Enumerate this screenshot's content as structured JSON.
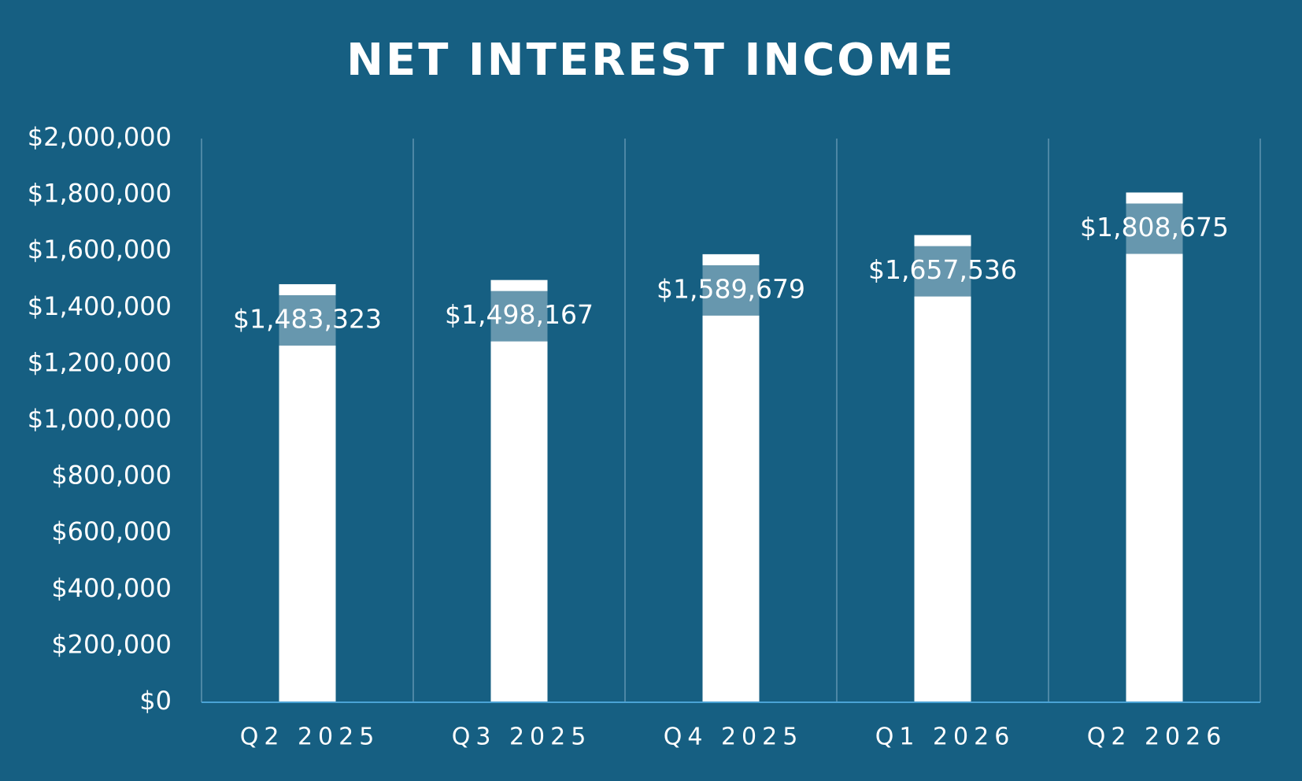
{
  "chart_data": {
    "type": "bar",
    "title": "NET INTEREST INCOME",
    "categories": [
      "Q2 2025",
      "Q3 2025",
      "Q4 2025",
      "Q1 2026",
      "Q2 2026"
    ],
    "values": [
      1483323,
      1498167,
      1589679,
      1657536,
      1808675
    ],
    "value_labels": [
      "$1,483,323",
      "$1,498,167",
      "$1,589,679",
      "$1,657,536",
      "$1,808,675"
    ],
    "color": "#ffffff",
    "ylim": [
      0,
      2000000
    ],
    "yticks": [
      {
        "value": 0,
        "label": "$0"
      },
      {
        "value": 200000,
        "label": "$200,000"
      },
      {
        "value": 400000,
        "label": "$400,000"
      },
      {
        "value": 600000,
        "label": "$600,000"
      },
      {
        "value": 800000,
        "label": "$800,000"
      },
      {
        "value": 1000000,
        "label": "$1,000,000"
      },
      {
        "value": 1200000,
        "label": "$1,200,000"
      },
      {
        "value": 1400000,
        "label": "$1,400,000"
      },
      {
        "value": 1600000,
        "label": "$1,600,000"
      },
      {
        "value": 1800000,
        "label": "$1,800,000"
      },
      {
        "value": 2000000,
        "label": "$2,000,000"
      }
    ]
  }
}
